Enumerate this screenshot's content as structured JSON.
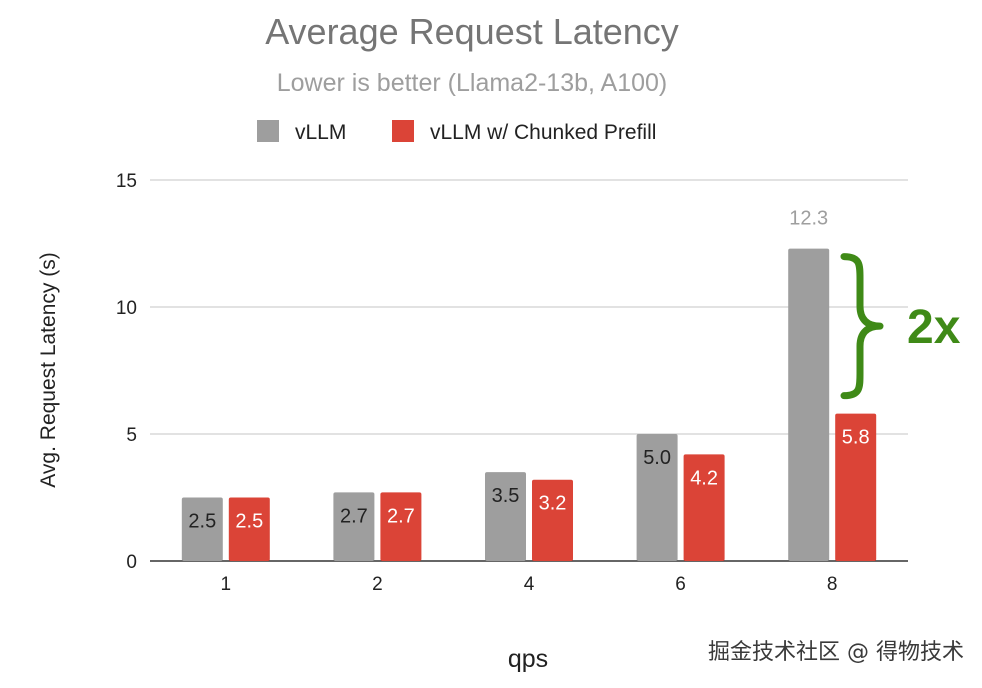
{
  "chart_data": {
    "type": "bar",
    "title": "Average Request Latency",
    "subtitle": "Lower is better  (Llama2-13b, A100)",
    "xlabel": "qps",
    "ylabel": "Avg. Request Latency (s)",
    "categories": [
      "1",
      "2",
      "4",
      "6",
      "8"
    ],
    "ylim": [
      0,
      15
    ],
    "yticks": [
      0,
      5,
      10,
      15
    ],
    "grid": true,
    "legend_position": "top",
    "series": [
      {
        "name": "vLLM",
        "color": "#9e9e9e",
        "values": [
          2.5,
          2.7,
          3.5,
          5.0,
          12.3
        ],
        "labels": [
          "2.5",
          "2.7",
          "3.5",
          "5.0",
          "12.3"
        ]
      },
      {
        "name": "vLLM w/ Chunked Prefill",
        "color": "#db4437",
        "values": [
          2.5,
          2.7,
          3.2,
          4.2,
          5.8
        ],
        "labels": [
          "2.5",
          "2.7",
          "3.2",
          "4.2",
          "5.8"
        ]
      }
    ],
    "annotation": {
      "text": "2x",
      "color": "#3f8a17",
      "category": "8"
    }
  },
  "watermark": "掘金技术社区 @ 得物技术"
}
